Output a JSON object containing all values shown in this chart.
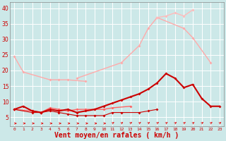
{
  "bg_color": "#cce8e8",
  "grid_color": "#ffffff",
  "xlabel": "Vent moyen/en rafales ( km/h )",
  "xlabel_color": "#cc0000",
  "xlabel_fontsize": 7,
  "xtick_labels": [
    "0",
    "1",
    "2",
    "3",
    "4",
    "5",
    "6",
    "7",
    "8",
    "9",
    "10",
    "11",
    "12",
    "13",
    "14",
    "15",
    "16",
    "17",
    "18",
    "19",
    "20",
    "21",
    "22",
    "23"
  ],
  "yticks": [
    5,
    10,
    15,
    20,
    25,
    30,
    35,
    40
  ],
  "ylim": [
    2,
    42
  ],
  "xlim": [
    -0.5,
    23.5
  ],
  "line_configs": [
    {
      "x": [
        0,
        1,
        4,
        5,
        6,
        8
      ],
      "y": [
        24.5,
        19.5,
        17.0,
        17.0,
        17.0,
        16.5
      ],
      "color": "#ffaaaa",
      "lw": 1.0,
      "ms": 2.0
    },
    {
      "x": [
        7,
        12,
        14,
        15,
        16,
        19,
        20,
        22
      ],
      "y": [
        17.5,
        22.5,
        28.0,
        33.5,
        37.0,
        33.5,
        30.5,
        22.5
      ],
      "color": "#ffaaaa",
      "lw": 1.0,
      "ms": 2.0
    },
    {
      "x": [
        16,
        17,
        18,
        19,
        20
      ],
      "y": [
        37.0,
        37.5,
        38.5,
        37.5,
        39.5
      ],
      "color": "#ffbbbb",
      "lw": 1.0,
      "ms": 2.0
    },
    {
      "x": [
        0,
        2,
        3,
        4,
        5,
        6,
        7,
        8,
        9,
        10,
        11,
        13
      ],
      "y": [
        7.5,
        7.0,
        6.5,
        8.0,
        7.5,
        7.0,
        7.5,
        7.5,
        7.5,
        7.5,
        8.0,
        8.5
      ],
      "color": "#ff6666",
      "lw": 1.0,
      "ms": 2.0
    },
    {
      "x": [
        0,
        1,
        2,
        3,
        4,
        5,
        6,
        7,
        8,
        9,
        10,
        11,
        12,
        13,
        14,
        15,
        16,
        17,
        18,
        19,
        20,
        21,
        22,
        23
      ],
      "y": [
        7.5,
        8.5,
        7.0,
        6.5,
        7.5,
        7.0,
        7.5,
        6.5,
        7.0,
        7.5,
        8.5,
        9.5,
        10.5,
        11.5,
        12.5,
        14.0,
        16.0,
        19.0,
        17.5,
        14.5,
        15.5,
        11.0,
        8.5,
        8.5
      ],
      "color": "#cc0000",
      "lw": 1.5,
      "ms": 2.0
    },
    {
      "x": [
        0,
        2,
        3,
        4,
        5,
        6,
        7,
        8,
        9,
        10,
        11,
        12,
        14,
        15,
        16
      ],
      "y": [
        7.5,
        6.5,
        6.5,
        7.0,
        6.5,
        6.0,
        5.5,
        5.5,
        5.5,
        5.5,
        6.5,
        6.5,
        6.5,
        7.0,
        7.5
      ],
      "color": "#cc0000",
      "lw": 0.8,
      "ms": 2.0
    }
  ],
  "arrows": {
    "x": [
      0,
      1,
      2,
      3,
      4,
      5,
      6,
      7,
      8,
      9,
      10,
      11,
      12,
      13,
      14,
      15,
      16,
      17,
      18,
      19,
      20,
      21,
      22,
      23
    ],
    "y_flat": 3.0,
    "color": "#dd2222",
    "flat_until": 10,
    "angled_from": 11
  }
}
